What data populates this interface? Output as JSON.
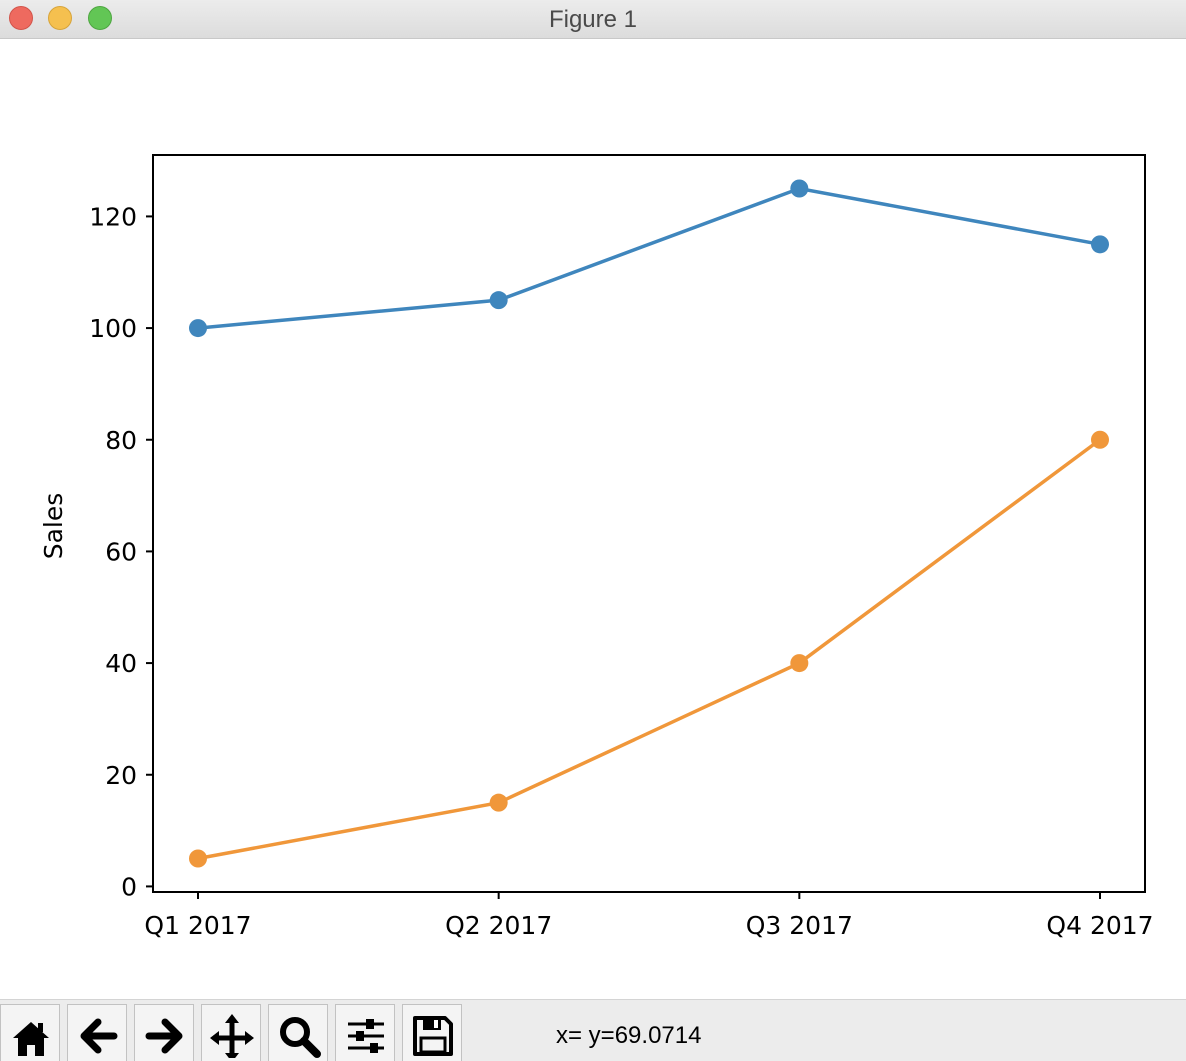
{
  "window": {
    "title": "Figure 1"
  },
  "toolbar": {
    "buttons": [
      {
        "name": "home-button",
        "icon": "home-icon"
      },
      {
        "name": "back-button",
        "icon": "arrow-left-icon"
      },
      {
        "name": "forward-button",
        "icon": "arrow-right-icon"
      },
      {
        "name": "pan-button",
        "icon": "move-icon"
      },
      {
        "name": "zoom-button",
        "icon": "magnifier-icon"
      },
      {
        "name": "configure-subplots-button",
        "icon": "sliders-icon"
      },
      {
        "name": "save-button",
        "icon": "floppy-disk-icon"
      }
    ]
  },
  "status": {
    "coordinates": "x= y=69.0714"
  },
  "chart_data": {
    "type": "line",
    "categories": [
      "Q1 2017",
      "Q2 2017",
      "Q3 2017",
      "Q4 2017"
    ],
    "series": [
      {
        "values": [
          100,
          105,
          125,
          115
        ],
        "color": "#3f86bd"
      },
      {
        "values": [
          5,
          15,
          40,
          80
        ],
        "color": "#f0973a"
      }
    ],
    "ylabel": "Sales",
    "xlabel": "",
    "title": "",
    "ylim": [
      -1,
      131
    ],
    "yticks": [
      0,
      20,
      40,
      60,
      80,
      100,
      120
    ],
    "grid": false,
    "marker": "circle"
  }
}
